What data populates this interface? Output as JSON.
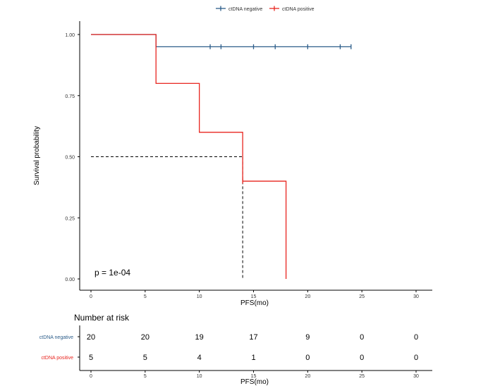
{
  "chart_data": [
    {
      "type": "line",
      "subtype": "kaplan-meier",
      "title": "",
      "xlabel": "PFS(mo)",
      "ylabel": "Survival probability",
      "xlim": [
        0,
        30
      ],
      "ylim": [
        0,
        1
      ],
      "x_ticks": [
        "0",
        "5",
        "10",
        "15",
        "20",
        "25",
        "30"
      ],
      "y_ticks": [
        "0.00",
        "0.25",
        "0.50",
        "0.75",
        "1.00"
      ],
      "legend_position": "top",
      "grid": false,
      "annotation": "p = 1e-04",
      "median_line": {
        "x": 14,
        "y": 0.5
      },
      "series": [
        {
          "name": "ctDNA negative",
          "color": "#2c5d8a",
          "steps": [
            [
              0,
              1.0
            ],
            [
              6,
              0.95
            ],
            [
              24,
              0.95
            ]
          ],
          "censor_x": [
            11,
            12,
            15,
            17,
            20,
            23,
            24
          ],
          "censor_y": 0.95
        },
        {
          "name": "ctDNA positive",
          "color": "#e8251f",
          "steps": [
            [
              0,
              1.0
            ],
            [
              6,
              0.8
            ],
            [
              10,
              0.6
            ],
            [
              14,
              0.4
            ],
            [
              18,
              0.0
            ]
          ],
          "censor_x": [
            14
          ],
          "censor_y": 0.4
        }
      ]
    },
    {
      "type": "table",
      "title": "Number at risk",
      "xlabel": "PFS(mo)",
      "x_ticks": [
        "0",
        "5",
        "10",
        "15",
        "20",
        "25",
        "30"
      ],
      "rows": [
        {
          "name": "ctDNA negative",
          "color": "#2c5d8a",
          "values": [
            "20",
            "20",
            "19",
            "17",
            "9",
            "0",
            "0"
          ]
        },
        {
          "name": "ctDNA positive",
          "color": "#e8251f",
          "values": [
            "5",
            "5",
            "4",
            "1",
            "0",
            "0",
            "0"
          ]
        }
      ]
    }
  ]
}
